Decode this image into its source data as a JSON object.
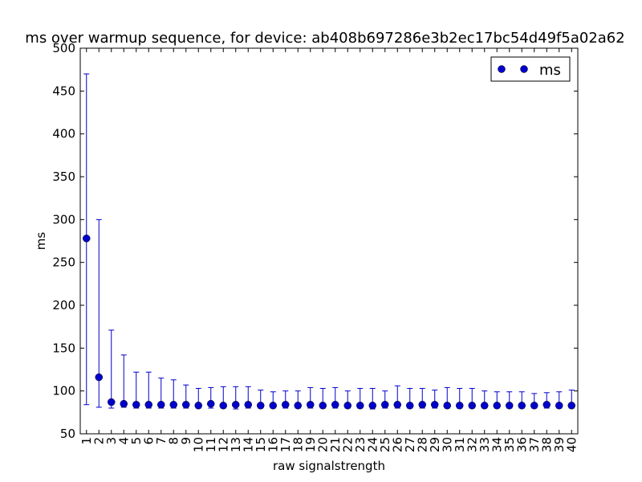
{
  "chart_data": {
    "type": "scatter",
    "title": "ms over warmup sequence, for device: ab408b697286e3b2ec17bc54d49f5a02a62",
    "xlabel": "raw signalstrength",
    "ylabel": "ms",
    "ylim": [
      50,
      500
    ],
    "yticks": [
      50,
      100,
      150,
      200,
      250,
      300,
      350,
      400,
      450,
      500
    ],
    "xlim": [
      0.5,
      40.5
    ],
    "grid": false,
    "legend_position": "top-right",
    "categories": [
      "1",
      "2",
      "3",
      "4",
      "5",
      "6",
      "7",
      "8",
      "9",
      "10",
      "11",
      "12",
      "13",
      "14",
      "15",
      "16",
      "17",
      "18",
      "19",
      "20",
      "21",
      "22",
      "23",
      "24",
      "25",
      "26",
      "27",
      "28",
      "29",
      "30",
      "31",
      "32",
      "33",
      "34",
      "35",
      "36",
      "37",
      "38",
      "39",
      "40"
    ],
    "series": [
      {
        "name": "ms",
        "color": "#0000cc",
        "x": [
          1,
          2,
          3,
          4,
          5,
          6,
          7,
          8,
          9,
          10,
          11,
          12,
          13,
          14,
          15,
          16,
          17,
          18,
          19,
          20,
          21,
          22,
          23,
          24,
          25,
          26,
          27,
          28,
          29,
          30,
          31,
          32,
          33,
          34,
          35,
          36,
          37,
          38,
          39,
          40
        ],
        "values": [
          278,
          116,
          87,
          85,
          84,
          84,
          84,
          84,
          84,
          83,
          85,
          83,
          84,
          84,
          83,
          83,
          84,
          83,
          84,
          83,
          84,
          83,
          83,
          83,
          84,
          84,
          83,
          84,
          84,
          83,
          83,
          83,
          83,
          83,
          83,
          83,
          83,
          84,
          83,
          83
        ],
        "err_low": [
          84,
          81,
          80,
          81,
          80,
          80,
          80,
          80,
          80,
          80,
          80,
          80,
          79,
          80,
          80,
          80,
          80,
          80,
          80,
          80,
          80,
          80,
          80,
          79,
          80,
          80,
          80,
          80,
          80,
          80,
          80,
          80,
          80,
          80,
          80,
          80,
          80,
          80,
          80,
          80
        ],
        "err_high": [
          470,
          300,
          171,
          142,
          122,
          122,
          115,
          113,
          107,
          103,
          104,
          105,
          105,
          105,
          101,
          99,
          100,
          100,
          104,
          103,
          104,
          100,
          103,
          103,
          100,
          106,
          103,
          103,
          101,
          104,
          103,
          103,
          100,
          99,
          99,
          99,
          97,
          98,
          99,
          101
        ]
      }
    ]
  }
}
